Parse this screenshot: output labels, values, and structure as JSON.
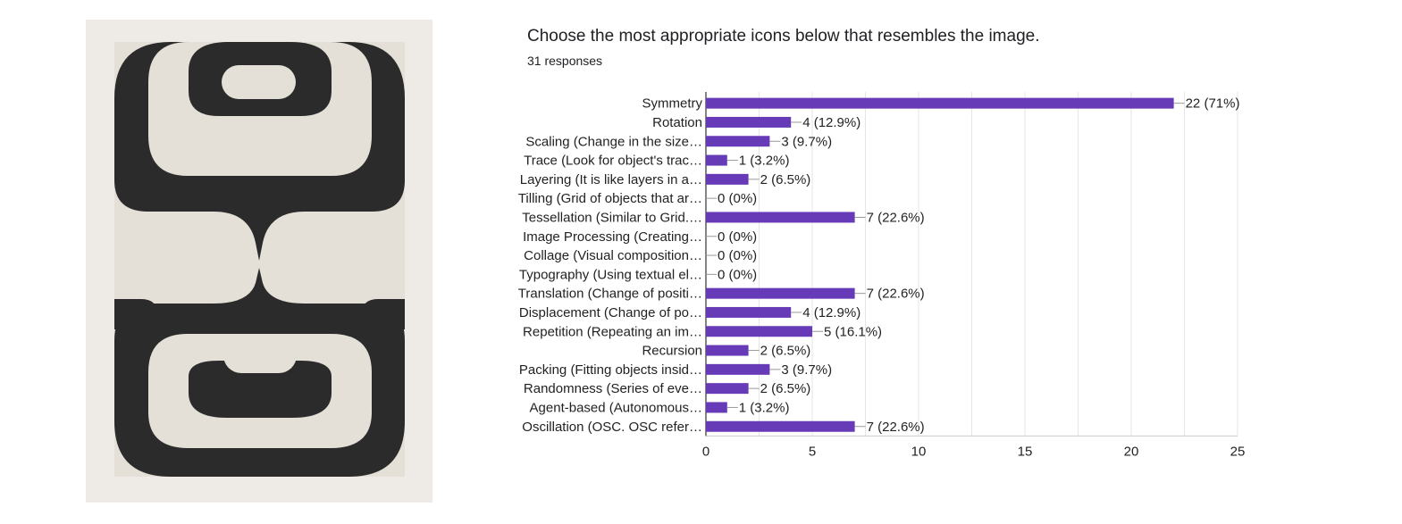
{
  "question": "Choose the most appropriate icons below that resembles the image.",
  "responses": "31 responses",
  "artwork": {
    "dark_color": "#2b2b2b",
    "light_color": "#e4e0d8",
    "paper_color": "#eeebe6",
    "description_icon": "artwork-image"
  },
  "chart_data": {
    "type": "bar",
    "orientation": "horizontal",
    "bar_color": "#673ab7",
    "categories": [
      "Symmetry",
      "Rotation",
      "Scaling (Change in the size…",
      "Trace (Look for object's trac…",
      "Layering (It is like layers in a…",
      "Tilling (Grid of objects that ar…",
      "Tessellation (Similar to Grid.…",
      "Image Processing (Creating…",
      "Collage (Visual composition…",
      "Typography (Using textual el…",
      "Translation (Change of positi…",
      "Displacement (Change of po…",
      "Repetition (Repeating an im…",
      "Recursion",
      "Packing (Fitting objects insid…",
      "Randomness (Series of eve…",
      "Agent-based (Autonomous…",
      "Oscillation (OSC. OSC refer…"
    ],
    "values": [
      22,
      4,
      3,
      1,
      2,
      0,
      7,
      0,
      0,
      0,
      7,
      4,
      5,
      2,
      3,
      2,
      1,
      7
    ],
    "labels": [
      "22 (71%)",
      "4 (12.9%)",
      "3 (9.7%)",
      "1 (3.2%)",
      "2 (6.5%)",
      "0 (0%)",
      "7 (22.6%)",
      "0 (0%)",
      "0 (0%)",
      "0 (0%)",
      "7 (22.6%)",
      "4 (12.9%)",
      "5 (16.1%)",
      "2 (6.5%)",
      "3 (9.7%)",
      "2 (6.5%)",
      "1 (3.2%)",
      "7 (22.6%)"
    ],
    "xlim": [
      0,
      25
    ],
    "xticks": [
      "0",
      "5",
      "10",
      "15",
      "20",
      "25"
    ],
    "grid": true
  }
}
